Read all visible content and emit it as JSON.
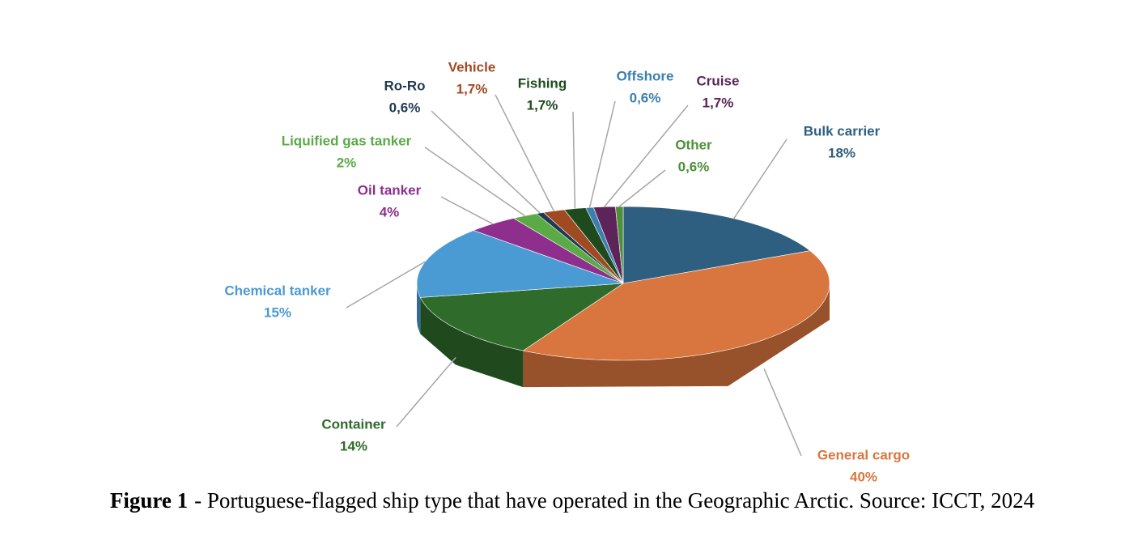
{
  "chart_data": {
    "type": "pie3d",
    "categories": [
      "Bulk carrier",
      "General cargo",
      "Container",
      "Chemical tanker",
      "Oil tanker",
      "Liquified gas tanker",
      "Ro-Ro",
      "Vehicle",
      "Fishing",
      "Offshore",
      "Cruise",
      "Other"
    ],
    "values": [
      18,
      40,
      14,
      15,
      4,
      2,
      0.6,
      1.7,
      1.7,
      0.6,
      1.7,
      0.6
    ],
    "value_labels": [
      "18%",
      "40%",
      "14%",
      "15%",
      "4%",
      "2%",
      "0,6%",
      "1,7%",
      "1,7%",
      "0,6%",
      "1,7%",
      "0,6%"
    ],
    "colors": [
      "#2e5f80",
      "#d9763f",
      "#2f6b2b",
      "#4a9ad4",
      "#8e2f8e",
      "#5aaa46",
      "#1f3a52",
      "#a04a22",
      "#1e4a1e",
      "#3a7fb0",
      "#5c2458",
      "#4e8f3a"
    ]
  },
  "caption": {
    "label": "Figure 1",
    "text": "- Portuguese-flagged ship type that have operated in the Geographic Arctic. Source: ICCT, 2024"
  }
}
